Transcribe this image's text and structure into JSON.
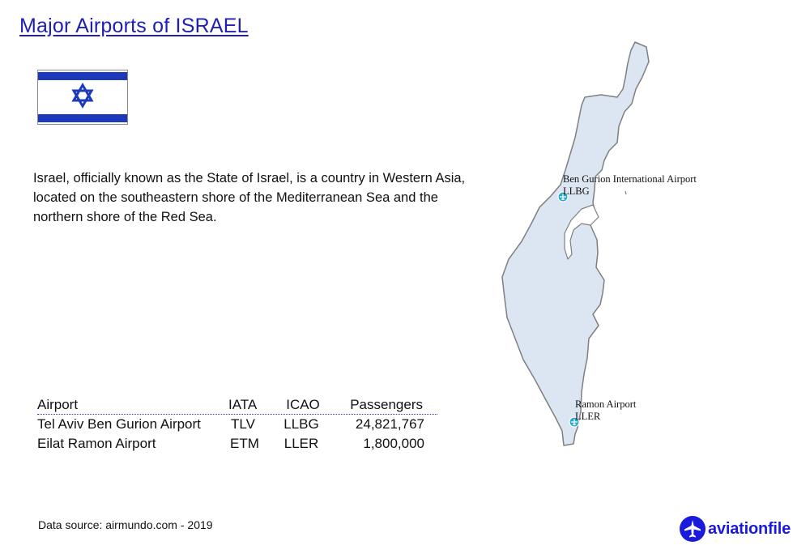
{
  "title": "Major Airports of ISRAEL",
  "flag": {
    "icon": "israel-flag-icon",
    "stripe_color": "#1c39bb",
    "background": "#ffffff"
  },
  "description": "Israel, officially known as the State of Israel, is a country in Western Asia, located on the southeastern shore of the Mediterranean Sea and the northern shore of the Red Sea.",
  "table": {
    "headers": {
      "airport": "Airport",
      "iata": "IATA",
      "icao": "ICAO",
      "passengers": "Passengers"
    },
    "rows": [
      {
        "airport": "Tel Aviv Ben Gurion Airport",
        "iata": "TLV",
        "icao": "LLBG",
        "passengers": "24,821,767"
      },
      {
        "airport": "Eilat Ramon Airport",
        "iata": "ETM",
        "icao": "LLER",
        "passengers": "1,800,000"
      }
    ]
  },
  "source": "Data source: airmundo.com - 2019",
  "map": {
    "land_color": "#dce6f2",
    "outline_color": "#7f7f7f",
    "marker_color": "#29a9c9",
    "markers": [
      {
        "name": "Ben Gurion International Airport",
        "code": "LLBG"
      },
      {
        "name": "Ramon Airport",
        "code": "LLER"
      }
    ]
  },
  "brand": {
    "text": "aviationfile",
    "icon": "airplane-logo-icon",
    "color": "#1a1adf"
  }
}
